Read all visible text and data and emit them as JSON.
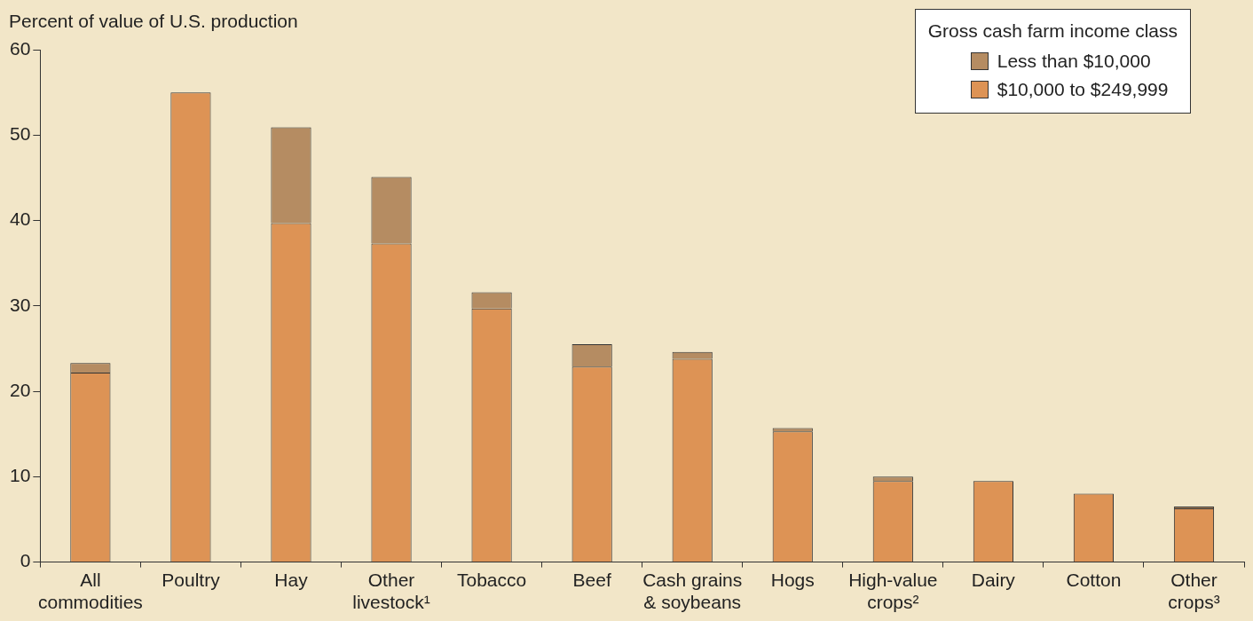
{
  "chart_data": {
    "type": "bar",
    "stacked": true,
    "ylabel": "Percent of value of U.S. production",
    "legend_title": "Gross cash farm income class",
    "legend": "top right",
    "grid": false,
    "categories": [
      "All\ncommodities",
      "Poultry",
      "Hay",
      "Other\nlivestock¹",
      "Tobacco",
      "Beef",
      "Cash grains\n& soybeans",
      "Hogs",
      "High-value\ncrops²",
      "Dairy",
      "Cotton",
      "Other\ncrops³"
    ],
    "ylim": [
      0,
      60
    ],
    "yticks": [
      0,
      10,
      20,
      30,
      40,
      50,
      60
    ],
    "series": [
      {
        "name": "$10,000 to $249,999",
        "color": "#dd9355",
        "values": [
          22.2,
          55.0,
          39.7,
          37.3,
          29.7,
          22.9,
          23.8,
          15.3,
          9.5,
          9.5,
          8.0,
          6.3
        ]
      },
      {
        "name": "Less than $10,000",
        "color": "#b58c62",
        "values": [
          1.1,
          0,
          11.2,
          7.8,
          1.9,
          2.6,
          0.8,
          0.4,
          0.5,
          0,
          0,
          0.2
        ]
      }
    ]
  }
}
